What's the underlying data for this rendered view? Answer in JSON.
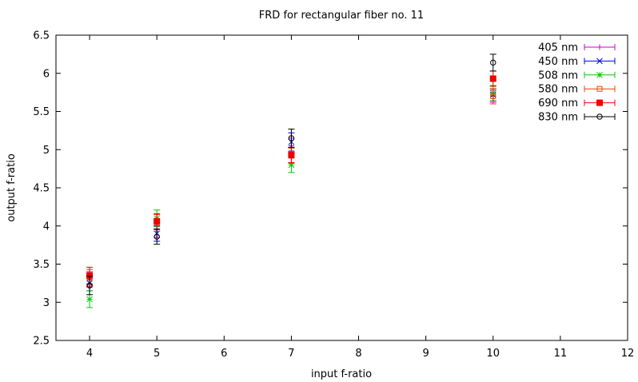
{
  "chart_data": {
    "type": "scatter",
    "title": "FRD for rectangular fiber no. 11",
    "xlabel": "input f-ratio",
    "ylabel": "output f-ratio",
    "xlim": [
      3.5,
      12
    ],
    "ylim": [
      2.5,
      6.5
    ],
    "xticks": [
      4,
      5,
      6,
      7,
      8,
      9,
      10,
      11,
      12
    ],
    "yticks": [
      2.5,
      3,
      3.5,
      4,
      4.5,
      5,
      5.5,
      6,
      6.5
    ],
    "xtick_labels": [
      "4",
      "5",
      "6",
      "7",
      "8",
      "9",
      "10",
      "11",
      "12"
    ],
    "ytick_labels": [
      "2.5",
      "3",
      "3.5",
      "4",
      "4.5",
      "5",
      "5.5",
      "6",
      "6.5"
    ],
    "grid": false,
    "legend_position": "top-right",
    "error_bars": true,
    "series": [
      {
        "name": "405 nm",
        "color": "#cc00cc",
        "marker": "plus",
        "points": [
          {
            "x": 4,
            "y": 3.3,
            "err": 0.1
          },
          {
            "x": 5,
            "y": 3.95,
            "err": 0.1
          },
          {
            "x": 7,
            "y": 5.05,
            "err": 0.1
          },
          {
            "x": 10,
            "y": 5.7,
            "err": 0.08
          }
        ]
      },
      {
        "name": "450 nm",
        "color": "#0000ee",
        "marker": "cross",
        "points": [
          {
            "x": 4,
            "y": 3.25,
            "err": 0.1
          },
          {
            "x": 5,
            "y": 3.9,
            "err": 0.1
          },
          {
            "x": 7,
            "y": 5.1,
            "err": 0.12
          },
          {
            "x": 10,
            "y": 5.72,
            "err": 0.08
          }
        ]
      },
      {
        "name": "508 nm",
        "color": "#00cc00",
        "marker": "star",
        "points": [
          {
            "x": 4,
            "y": 3.04,
            "err": 0.11
          },
          {
            "x": 5,
            "y": 4.1,
            "err": 0.11
          },
          {
            "x": 7,
            "y": 4.8,
            "err": 0.1
          },
          {
            "x": 10,
            "y": 5.74,
            "err": 0.1
          }
        ]
      },
      {
        "name": "580 nm",
        "color": "#ee4400",
        "marker": "square-open",
        "points": [
          {
            "x": 4,
            "y": 3.32,
            "err": 0.11
          },
          {
            "x": 5,
            "y": 4.04,
            "err": 0.11
          },
          {
            "x": 7,
            "y": 4.92,
            "err": 0.1
          },
          {
            "x": 10,
            "y": 5.7,
            "err": 0.1
          }
        ]
      },
      {
        "name": "690 nm",
        "color": "#ee0000",
        "marker": "square-filled",
        "points": [
          {
            "x": 4,
            "y": 3.35,
            "err": 0.11
          },
          {
            "x": 5,
            "y": 4.06,
            "err": 0.1
          },
          {
            "x": 7,
            "y": 4.93,
            "err": 0.1
          },
          {
            "x": 10,
            "y": 5.93,
            "err": 0.1
          }
        ]
      },
      {
        "name": "830 nm",
        "color": "#000000",
        "marker": "circle-open",
        "points": [
          {
            "x": 4,
            "y": 3.22,
            "err": 0.12
          },
          {
            "x": 5,
            "y": 3.86,
            "err": 0.1
          },
          {
            "x": 7,
            "y": 5.15,
            "err": 0.12
          },
          {
            "x": 10,
            "y": 6.14,
            "err": 0.11
          }
        ]
      }
    ]
  }
}
